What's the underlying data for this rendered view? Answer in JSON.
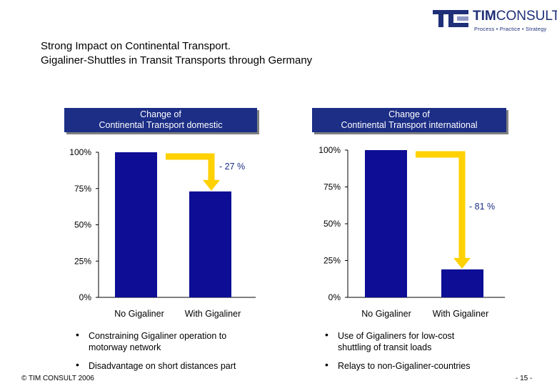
{
  "logo": {
    "name_bold": "TIM",
    "name_rest": "CONSULT",
    "tagline": "Process • Practice • Strategy"
  },
  "title": {
    "line1": "Strong Impact on Continental Transport.",
    "line2": "Gigaliner-Shuttles in Transit Transports through Germany"
  },
  "colors": {
    "bar": "#0d0d96",
    "header_bg": "#1c2e86",
    "arrow": "#ffd100",
    "text_blue": "#1f2f78"
  },
  "chart_data": [
    {
      "type": "bar",
      "title_line1": "Change of",
      "title_line2": "Continental Transport domestic",
      "categories": [
        "No Gigaliner",
        "With Gigaliner"
      ],
      "values": [
        100,
        73
      ],
      "ylim": [
        0,
        100
      ],
      "yticks": [
        0,
        25,
        50,
        75,
        100
      ],
      "ytick_labels": [
        "0%",
        "25%",
        "50%",
        "75%",
        "100%"
      ],
      "change_label": "- 27 %",
      "bullets": [
        [
          "Constraining Gigaliner operation to",
          "motorway network"
        ],
        [
          "Disadvantage on short distances part"
        ]
      ]
    },
    {
      "type": "bar",
      "title_line1": "Change of",
      "title_line2": "Continental Transport international",
      "categories": [
        "No Gigaliner",
        "With Gigaliner"
      ],
      "values": [
        100,
        19
      ],
      "ylim": [
        0,
        100
      ],
      "yticks": [
        0,
        25,
        50,
        75,
        100
      ],
      "ytick_labels": [
        "0%",
        "25%",
        "50%",
        "75%",
        "100%"
      ],
      "change_label": "- 81 %",
      "bullets": [
        [
          "Use of Gigaliners for low-cost",
          "shuttling of transit loads"
        ],
        [
          "Relays to non-Gigaliner-countries"
        ]
      ]
    }
  ],
  "footer": {
    "copyright": "© TIM CONSULT 2006",
    "page": "- 15 -"
  }
}
